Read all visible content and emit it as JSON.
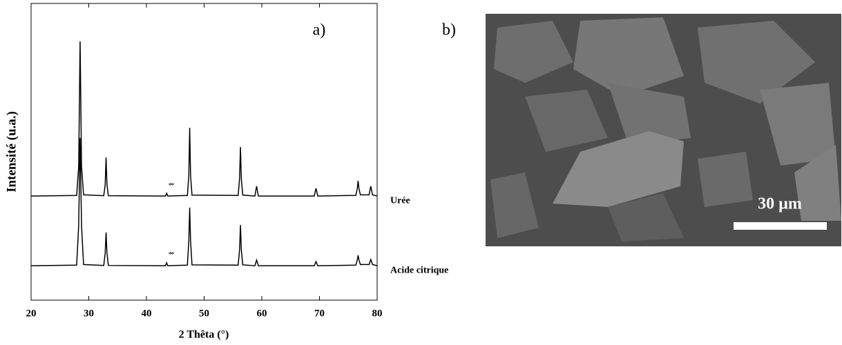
{
  "chart_data": {
    "type": "line",
    "panel_label": "a)",
    "xlabel": "2 Thêta (°)",
    "ylabel": "Intensité (u.a.)",
    "xlim": [
      20,
      80
    ],
    "xticks": [
      20,
      30,
      40,
      50,
      60,
      70,
      80
    ],
    "ylim": [
      0,
      100
    ],
    "x": [
      20,
      27.9,
      28.25,
      28.5,
      28.75,
      29.1,
      32.6,
      32.85,
      33.0,
      33.15,
      33.4,
      43.3,
      43.5,
      43.7,
      47.1,
      47.35,
      47.5,
      47.65,
      47.9,
      55.9,
      56.15,
      56.3,
      56.45,
      56.7,
      58.8,
      59.1,
      59.4,
      69.1,
      69.4,
      69.7,
      76.3,
      76.55,
      76.7,
      76.85,
      77.1,
      78.6,
      78.9,
      79.2,
      80
    ],
    "series": [
      {
        "name": "Urée",
        "color": "#000000",
        "values": [
          35.1,
          35.3,
          45,
          87.2,
          45,
          35.5,
          35.2,
          39,
          48.1,
          39,
          35.2,
          35.1,
          36.0,
          35.1,
          35.3,
          42,
          58.1,
          42,
          35.4,
          35.3,
          41,
          51.6,
          41,
          35.4,
          35.1,
          38.4,
          35.1,
          35.1,
          37.7,
          35.1,
          35.3,
          37.5,
          40.2,
          37.5,
          35.5,
          35.5,
          38.4,
          35.5,
          35.1
        ]
      },
      {
        "name": "Acide citrique",
        "color": "#000000",
        "values": [
          11.6,
          11.8,
          25,
          54.7,
          25,
          12,
          11.7,
          16,
          22.8,
          16,
          11.7,
          11.6,
          12.6,
          11.6,
          11.8,
          20,
          31.2,
          20,
          11.9,
          11.8,
          17,
          25.3,
          17,
          11.9,
          11.6,
          13.5,
          11.6,
          11.6,
          13.0,
          11.6,
          11.8,
          13.5,
          15.1,
          13.5,
          12,
          12,
          13.7,
          12,
          11.6
        ]
      }
    ],
    "annotations": [
      {
        "text": "**",
        "x": 44.2,
        "y": 38.5
      },
      {
        "text": "**",
        "x": 44.2,
        "y": 15.2
      }
    ]
  },
  "panel_b": {
    "label": "b)",
    "scale_bar": "30 µm"
  }
}
